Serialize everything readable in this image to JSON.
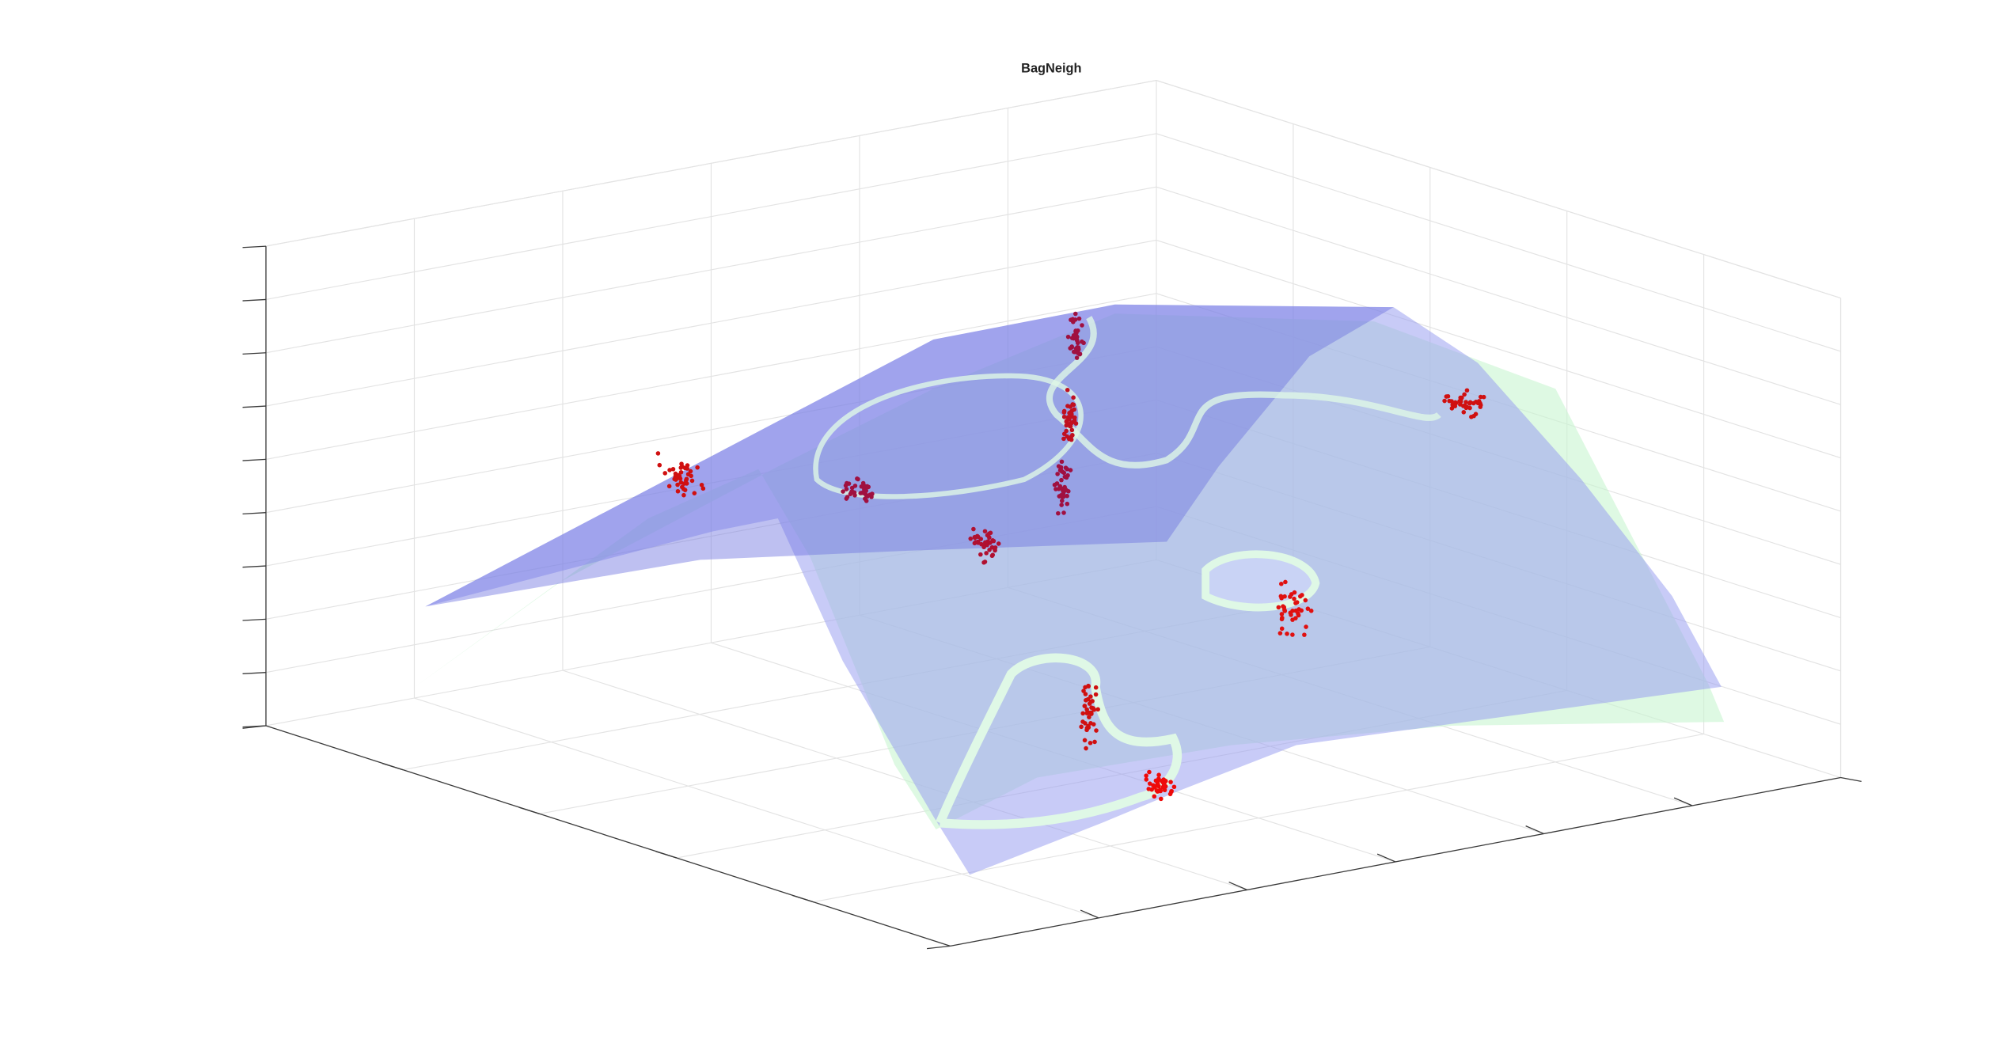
{
  "chart_data": {
    "type": "surface3d",
    "title": "BagNeigh"
  }
}
